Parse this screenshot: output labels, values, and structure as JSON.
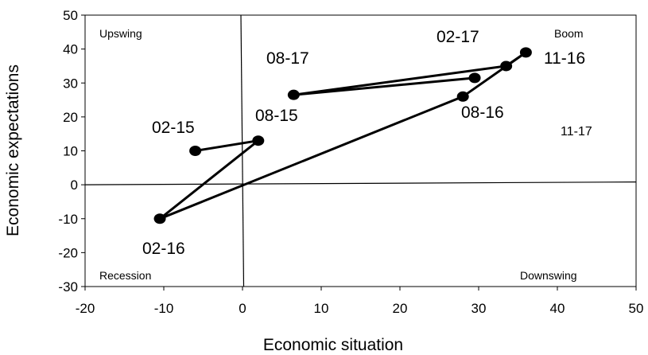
{
  "chart_data": {
    "type": "scatter",
    "xlabel": "Economic situation",
    "ylabel": "Economic expectations",
    "xlim": [
      -20,
      50
    ],
    "ylim": [
      -30,
      50
    ],
    "x_ticks": [
      -20,
      -10,
      0,
      10,
      20,
      30,
      40,
      50
    ],
    "y_ticks": [
      -30,
      -20,
      -10,
      0,
      10,
      20,
      30,
      40,
      50
    ],
    "grid": false,
    "quadrant_labels": {
      "top_left": "Upswing",
      "top_right": "Boom",
      "bottom_left": "Recession",
      "bottom_right": "Downswing"
    },
    "series": [
      {
        "points": [
          {
            "label": "02-15",
            "x": -6,
            "y": 10
          },
          {
            "label": "08-15",
            "x": 2,
            "y": 13
          },
          {
            "label": "02-16",
            "x": -10.5,
            "y": -10
          },
          {
            "label": "08-16",
            "x": 28,
            "y": 26
          },
          {
            "label": "11-16",
            "x": 36,
            "y": 39
          },
          {
            "label": "02-17",
            "x": 33.5,
            "y": 35
          },
          {
            "label": "08-17",
            "x": 6.5,
            "y": 26.5
          },
          {
            "label": "11-17",
            "x": 29.5,
            "y": 31.5
          }
        ]
      }
    ]
  }
}
